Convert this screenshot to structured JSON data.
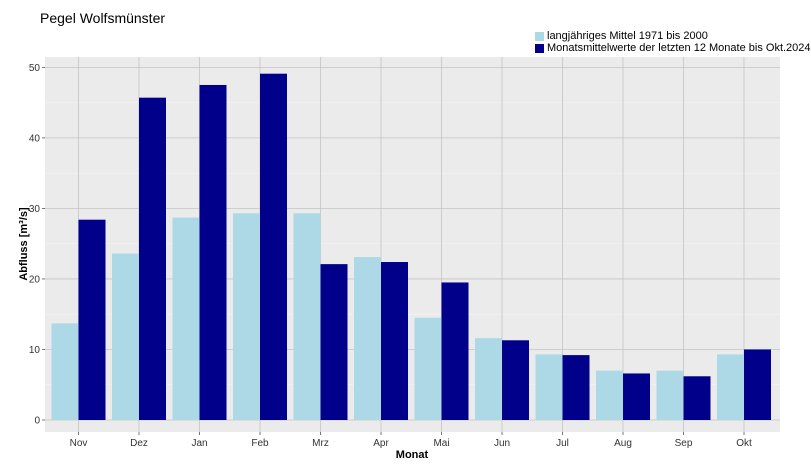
{
  "chart_data": {
    "type": "bar",
    "title": "Pegel Wolfsmünster",
    "xlabel": "Monat",
    "ylabel": "Abfluss [m³/s]",
    "ylim": [
      0,
      52
    ],
    "yticks": [
      0,
      10,
      20,
      30,
      40,
      50
    ],
    "grid": true,
    "legend_position": "top-right",
    "categories": [
      "Nov",
      "Dez",
      "Jan",
      "Feb",
      "Mrz",
      "Apr",
      "Mai",
      "Jun",
      "Jul",
      "Aug",
      "Sep",
      "Okt"
    ],
    "series": [
      {
        "name": "langjähriges Mittel 1971 bis 2000",
        "color": "#add8e6",
        "values": [
          13.7,
          23.6,
          28.7,
          29.3,
          29.3,
          23.1,
          14.5,
          11.6,
          9.3,
          7.0,
          7.0,
          9.3
        ]
      },
      {
        "name": "Monatsmittelwerte der letzten 12 Monate bis Okt.2024",
        "color": "#00008b",
        "values": [
          28.4,
          45.7,
          47.5,
          49.1,
          22.1,
          22.4,
          19.5,
          11.3,
          9.2,
          6.6,
          6.2,
          10.0
        ]
      }
    ]
  }
}
